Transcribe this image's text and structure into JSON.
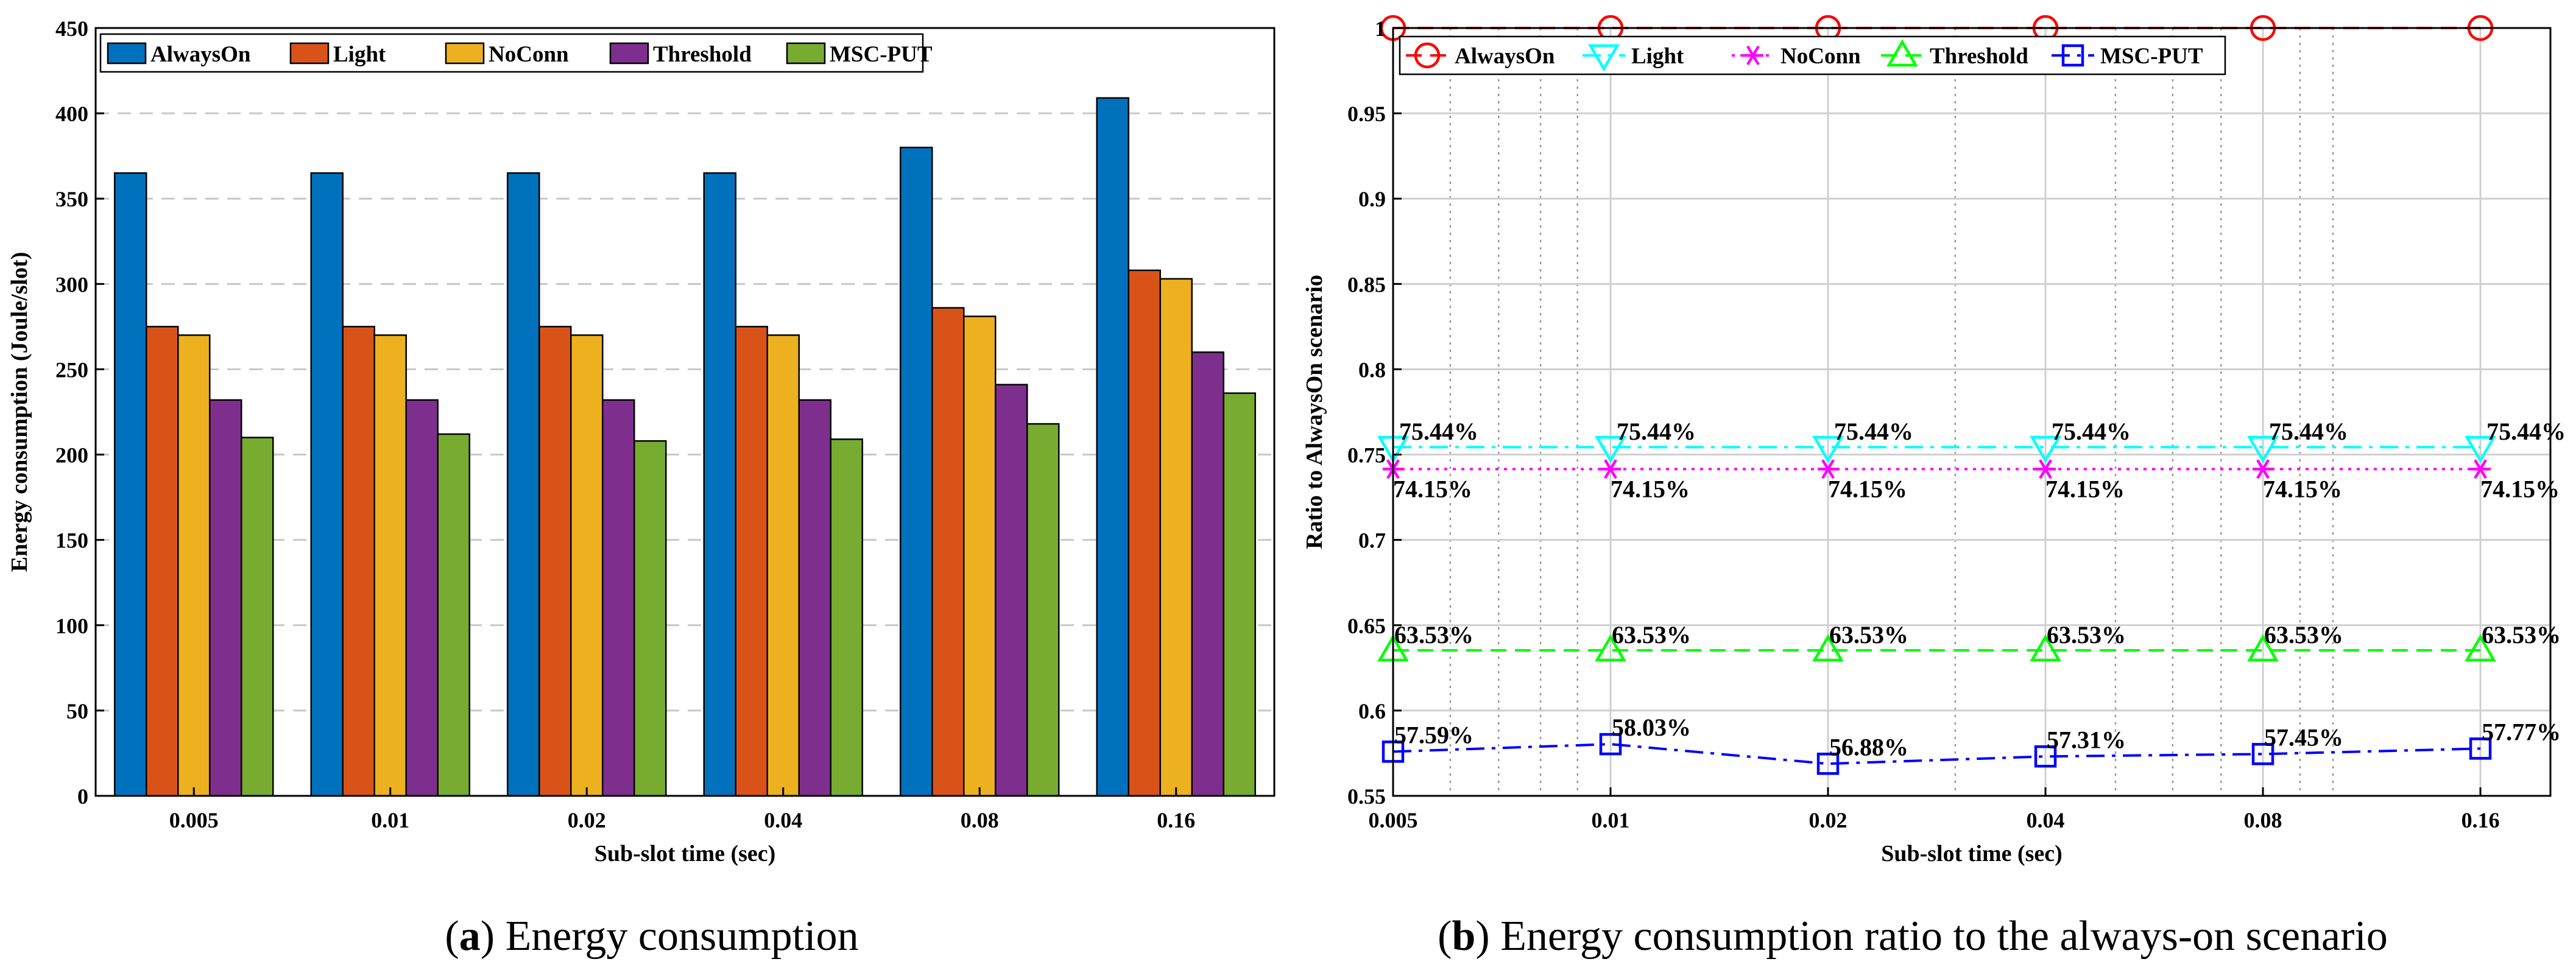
{
  "chart_data": [
    {
      "type": "bar",
      "title": "",
      "xlabel": "Sub-slot time (sec)",
      "ylabel": "Energy consumption (Joule/slot)",
      "ylim": [
        0,
        450
      ],
      "yticks": [
        0,
        50,
        100,
        150,
        200,
        250,
        300,
        350,
        400,
        450
      ],
      "categories": [
        "0.005",
        "0.01",
        "0.02",
        "0.04",
        "0.08",
        "0.16"
      ],
      "grid": "horizontal dashed",
      "legend_position": "top",
      "series": [
        {
          "name": "AlwaysOn",
          "color": "#0072BD",
          "values": [
            365,
            365,
            365,
            365,
            380,
            409
          ]
        },
        {
          "name": "Light",
          "color": "#D95319",
          "values": [
            275,
            275,
            275,
            275,
            286,
            308
          ]
        },
        {
          "name": "NoConn",
          "color": "#EDB120",
          "values": [
            270,
            270,
            270,
            270,
            281,
            303
          ]
        },
        {
          "name": "Threshold",
          "color": "#7E2F8E",
          "values": [
            232,
            232,
            232,
            232,
            241,
            260
          ]
        },
        {
          "name": "MSC-PUT",
          "color": "#77AC30",
          "values": [
            210,
            212,
            208,
            209,
            218,
            236
          ]
        }
      ],
      "caption_letter": "a",
      "caption_text": "Energy consumption"
    },
    {
      "type": "line",
      "title": "",
      "xlabel": "Sub-slot time (sec)",
      "ylabel": "Ratio to AlwaysOn scenario",
      "xscale": "log",
      "xlim": [
        0.005,
        0.2
      ],
      "xticks": [
        "0.005",
        "0.01",
        "0.02",
        "0.04",
        "0.08",
        "0.16"
      ],
      "ylim": [
        0.55,
        1.0
      ],
      "yticks": [
        "0.55",
        "0.6",
        "0.65",
        "0.7",
        "0.75",
        "0.8",
        "0.85",
        "0.9",
        "0.95",
        "1"
      ],
      "grid": "on (minor dotted)",
      "legend_position": "top",
      "x": [
        0.005,
        0.01,
        0.02,
        0.04,
        0.08,
        0.16
      ],
      "series": [
        {
          "name": "AlwaysOn",
          "color": "#FF0000",
          "marker": "circle",
          "linestyle": "dashed",
          "values": [
            1.0,
            1.0,
            1.0,
            1.0,
            1.0,
            1.0
          ],
          "labels": []
        },
        {
          "name": "Light",
          "color": "#00FFFF",
          "marker": "triangle-down",
          "linestyle": "dashdot",
          "values": [
            0.7544,
            0.7544,
            0.7544,
            0.7544,
            0.7544,
            0.7544
          ],
          "labels": [
            "75.44%",
            "75.44%",
            "75.44%",
            "75.44%",
            "75.44%",
            "75.44%"
          ]
        },
        {
          "name": "NoConn",
          "color": "#FF00FF",
          "marker": "asterisk",
          "linestyle": "dotted",
          "values": [
            0.7415,
            0.7415,
            0.7415,
            0.7415,
            0.7415,
            0.7415
          ],
          "labels": [
            "74.15%",
            "74.15%",
            "74.15%",
            "74.15%",
            "74.15%",
            "74.15%"
          ]
        },
        {
          "name": "Threshold",
          "color": "#00FF00",
          "marker": "triangle-up",
          "linestyle": "dashed",
          "values": [
            0.6353,
            0.6353,
            0.6353,
            0.6353,
            0.6353,
            0.6353
          ],
          "labels": [
            "63.53%",
            "63.53%",
            "63.53%",
            "63.53%",
            "63.53%",
            "63.53%"
          ]
        },
        {
          "name": "MSC-PUT",
          "color": "#0000FF",
          "marker": "square",
          "linestyle": "dashdot",
          "values": [
            0.5759,
            0.5803,
            0.5688,
            0.5731,
            0.5745,
            0.5777
          ],
          "labels": [
            "57.59%",
            "58.03%",
            "56.88%",
            "57.31%",
            "57.45%",
            "57.77%"
          ]
        }
      ],
      "caption_letter": "b",
      "caption_text": "Energy consumption ratio to the always-on scenario"
    }
  ]
}
